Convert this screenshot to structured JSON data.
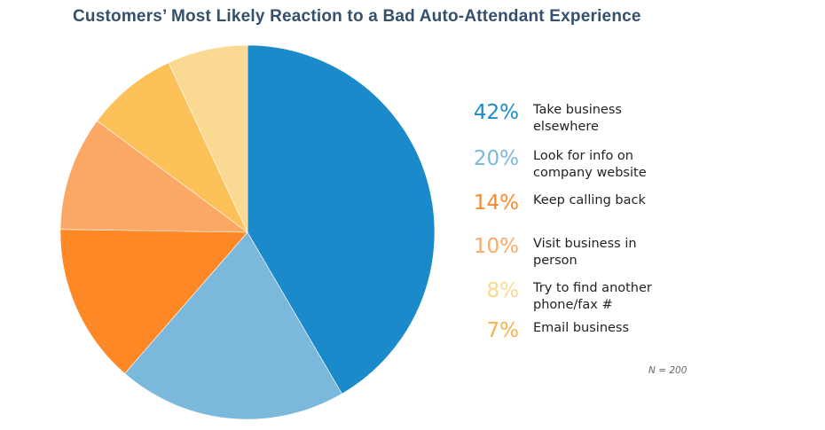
{
  "chart_data": {
    "type": "pie",
    "title": "Customers’ Most Likely Reaction to a Bad Auto-Attendant Experience",
    "slices": [
      {
        "label": "Take business elsewhere",
        "value": 42,
        "display": "42%",
        "color": "#1b8aca",
        "pct_color": "#1b8aca"
      },
      {
        "label": "Look for info on company website",
        "value": 20,
        "display": "20%",
        "color": "#7ab8dc",
        "pct_color": "#7ab8dc"
      },
      {
        "label": "Keep calling back",
        "value": 14,
        "display": "14%",
        "color": "#fd8825",
        "pct_color": "#fd8825"
      },
      {
        "label": "Visit business in person",
        "value": 10,
        "display": "10%",
        "color": "#fba866",
        "pct_color": "#fba866"
      },
      {
        "label": "Try to find another phone/fax #",
        "value": 8,
        "display": "8%",
        "color": "#fcc158",
        "pct_color": "#fbd98e"
      },
      {
        "label": "Email business",
        "value": 7,
        "display": "7%",
        "color": "#fad993",
        "pct_color": "#f9b04b"
      }
    ],
    "note": "N = 200",
    "legend_placement": "right"
  }
}
